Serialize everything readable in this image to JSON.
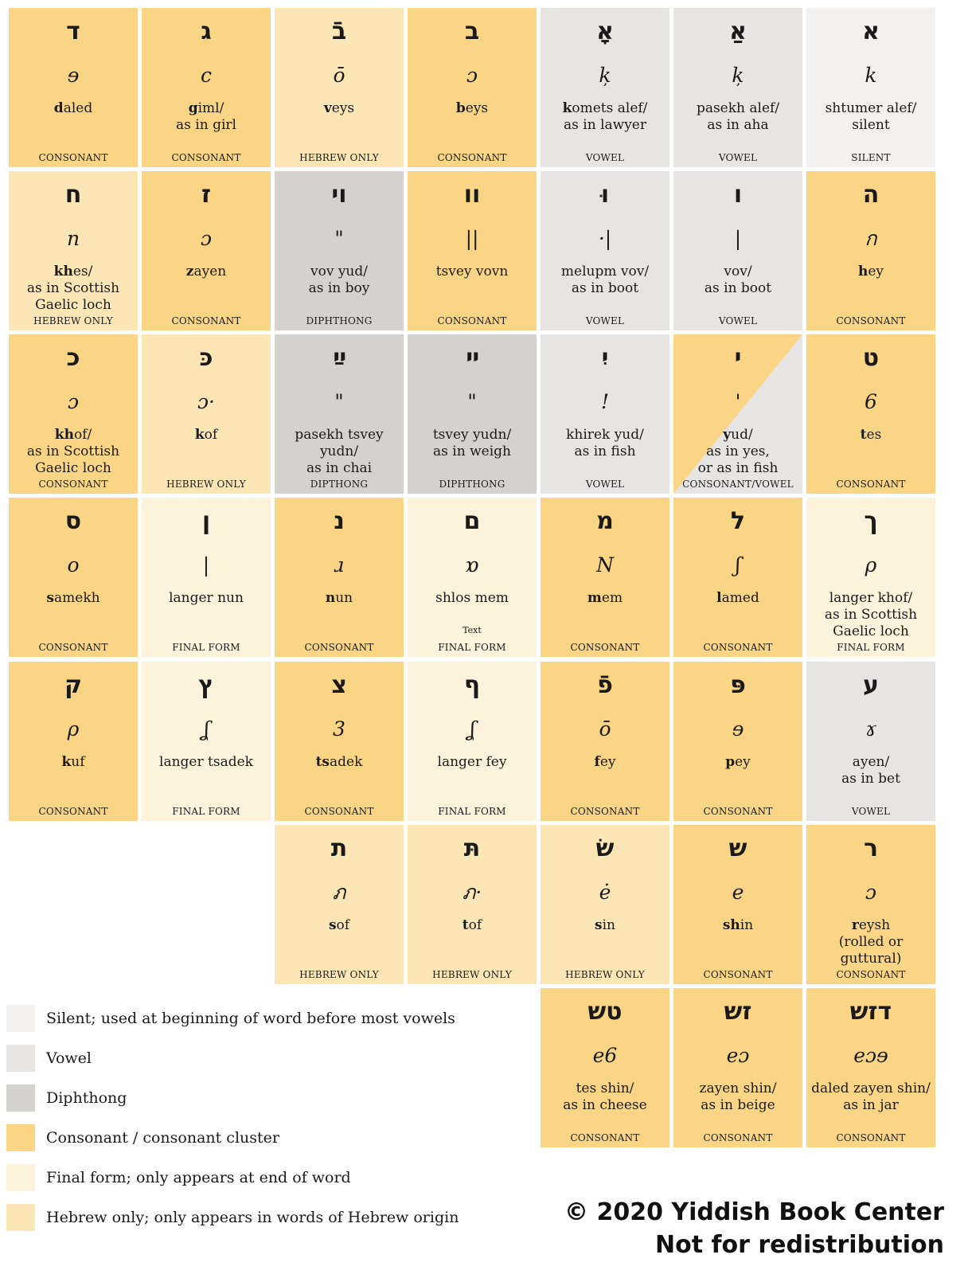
{
  "colors": {
    "silent": "#f2f1ef",
    "vowel": "#e6e5e3",
    "diphthong": "#d4d2ce",
    "consonant": "#f9d585",
    "final": "#fdf2dc",
    "hebrew": "#fce6b5"
  },
  "rows": [
    [
      {
        "heb": "ד",
        "script": "ɘ",
        "name": "daled",
        "bold": "d",
        "cat": "CONSONANT",
        "type": "consonant"
      },
      {
        "heb": "ג",
        "script": "c",
        "name": "giml/\nas in girl",
        "bold": "g",
        "cat": "CONSONANT",
        "type": "consonant"
      },
      {
        "heb": "בֿ",
        "script": "ō",
        "name": "veys",
        "bold": "v",
        "cat": "HEBREW ONLY",
        "type": "hebrew"
      },
      {
        "heb": "ב",
        "script": "ɔ",
        "name": "beys",
        "bold": "b",
        "cat": "CONSONANT",
        "type": "consonant"
      },
      {
        "heb": "אָ",
        "script": "ķ",
        "name": "komets alef/\nas in lawyer",
        "bold": "k",
        "cat": "VOWEL",
        "type": "vowel"
      },
      {
        "heb": "אַ",
        "script": "ķ",
        "name": "pasekh alef/\nas in aha",
        "bold": "a",
        "cat": "VOWEL",
        "type": "vowel"
      },
      {
        "heb": "א",
        "script": "k",
        "name": "shtumer alef/\nsilent",
        "bold": "",
        "cat": "SILENT",
        "type": "silent"
      }
    ],
    [
      {
        "heb": "ח",
        "script": "n",
        "name": "khes/\nas in Scottish\nGaelic loch",
        "bold": "kh",
        "cat": "HEBREW ONLY",
        "type": "hebrew"
      },
      {
        "heb": "ז",
        "script": "ɔ",
        "name": "zayen",
        "bold": "z",
        "cat": "CONSONANT",
        "type": "consonant"
      },
      {
        "heb": "וי",
        "script": "\"",
        "name": "vov yud/\nas in boy",
        "bold": "",
        "cat": "DIPHTHONG",
        "type": "diphthong"
      },
      {
        "heb": "וו",
        "script": "||",
        "name": "tsvey vovn",
        "bold": "v",
        "cat": "CONSONANT",
        "type": "consonant"
      },
      {
        "heb": "וּ",
        "script": "·|",
        "name": "melupm vov/\nas in boot",
        "bold": "",
        "cat": "VOWEL",
        "type": "vowel"
      },
      {
        "heb": "ו",
        "script": "|",
        "name": "vov/\nas in boot",
        "bold": "",
        "cat": "VOWEL",
        "type": "vowel"
      },
      {
        "heb": "ה",
        "script": "ก",
        "name": "hey",
        "bold": "h",
        "cat": "CONSONANT",
        "type": "consonant"
      }
    ],
    [
      {
        "heb": "כ",
        "script": "ɔ",
        "name": "khof/\nas in Scottish\nGaelic loch",
        "bold": "kh",
        "cat": "CONSONANT",
        "type": "consonant"
      },
      {
        "heb": "כּ",
        "script": "ɔ·",
        "name": "kof",
        "bold": "k",
        "cat": "HEBREW ONLY",
        "type": "hebrew"
      },
      {
        "heb": "ײַ",
        "script": "\"",
        "name": "pasekh tsvey yudn/\nas in chai",
        "bold": "",
        "cat": "DIPTHONG",
        "type": "diphthong"
      },
      {
        "heb": "ײ",
        "script": "\"",
        "name": "tsvey yudn/\nas in weigh",
        "bold": "",
        "cat": "DIPHTHONG",
        "type": "diphthong"
      },
      {
        "heb": "יִ",
        "script": "!",
        "name": "khirek yud/\nas in fish",
        "bold": "",
        "cat": "VOWEL",
        "type": "vowel"
      },
      {
        "heb": "י",
        "script": "'",
        "name": "yud/\nas in yes,\nor as in fish",
        "bold": "y",
        "cat": "CONSONANT/VOWEL",
        "type": "split"
      },
      {
        "heb": "ט",
        "script": "6",
        "name": "tes",
        "bold": "t",
        "cat": "CONSONANT",
        "type": "consonant"
      }
    ],
    [
      {
        "heb": "ס",
        "script": "o",
        "name": "samekh",
        "bold": "s",
        "cat": "CONSONANT",
        "type": "consonant"
      },
      {
        "heb": "ן",
        "script": "|",
        "name": "langer nun",
        "bold": "",
        "cat": "FINAL FORM",
        "type": "final"
      },
      {
        "heb": "נ",
        "script": "ɹ",
        "name": "nun",
        "bold": "n",
        "cat": "CONSONANT",
        "type": "consonant"
      },
      {
        "heb": "ם",
        "script": "ɒ",
        "name": "shlos mem",
        "bold": "",
        "cat": "FINAL FORM",
        "type": "final",
        "note": "Text"
      },
      {
        "heb": "מ",
        "script": "N",
        "name": "mem",
        "bold": "m",
        "cat": "CONSONANT",
        "type": "consonant"
      },
      {
        "heb": "ל",
        "script": "ʃ",
        "name": "lamed",
        "bold": "l",
        "cat": "CONSONANT",
        "type": "consonant"
      },
      {
        "heb": "ך",
        "script": "ρ",
        "name": "langer khof/\nas in Scottish\nGaelic loch",
        "bold": "",
        "cat": "FINAL FORM",
        "type": "final"
      }
    ],
    [
      {
        "heb": "ק",
        "script": "ρ",
        "name": "kuf",
        "bold": "k",
        "cat": "CONSONANT",
        "type": "consonant"
      },
      {
        "heb": "ץ",
        "script": "ʆ",
        "name": "langer tsadek",
        "bold": "",
        "cat": "FINAL FORM",
        "type": "final"
      },
      {
        "heb": "צ",
        "script": "3",
        "name": "tsadek",
        "bold": "ts",
        "cat": "CONSONANT",
        "type": "consonant"
      },
      {
        "heb": "ף",
        "script": "ʆ",
        "name": "langer fey",
        "bold": "",
        "cat": "FINAL FORM",
        "type": "final"
      },
      {
        "heb": "פֿ",
        "script": "ō",
        "name": "fey",
        "bold": "f",
        "cat": "CONSONANT",
        "type": "consonant"
      },
      {
        "heb": "פּ",
        "script": "ɘ",
        "name": "pey",
        "bold": "p",
        "cat": "CONSONANT",
        "type": "consonant"
      },
      {
        "heb": "ע",
        "script": "ɤ",
        "name": "ayen/\nas in bet",
        "bold": "",
        "cat": "VOWEL",
        "type": "vowel"
      }
    ],
    [
      null,
      null,
      {
        "heb": "ת",
        "script": "ภ",
        "name": "sof",
        "bold": "s",
        "cat": "HEBREW ONLY",
        "type": "hebrew"
      },
      {
        "heb": "תּ",
        "script": "ภ·",
        "name": "tof",
        "bold": "t",
        "cat": "HEBREW ONLY",
        "type": "hebrew"
      },
      {
        "heb": "שׂ",
        "script": "ė",
        "name": "sin",
        "bold": "s",
        "cat": "HEBREW ONLY",
        "type": "hebrew"
      },
      {
        "heb": "ש",
        "script": "e",
        "name": "shin",
        "bold": "sh",
        "cat": "CONSONANT",
        "type": "consonant"
      },
      {
        "heb": "ר",
        "script": "ɔ",
        "name": "reysh\n(rolled or guttural)",
        "bold": "r",
        "cat": "CONSONANT",
        "type": "consonant"
      }
    ],
    [
      null,
      null,
      null,
      null,
      {
        "heb": "טש",
        "script": "e6",
        "name": "tes shin/\nas in cheese",
        "bold": "",
        "cat": "CONSONANT",
        "type": "consonant"
      },
      {
        "heb": "זש",
        "script": "eɔ",
        "name": "zayen shin/\nas in beige",
        "bold": "",
        "cat": "CONSONANT",
        "type": "consonant"
      },
      {
        "heb": "דזש",
        "script": "eɔɘ",
        "name": "daled zayen shin/\nas in jar",
        "bold": "j",
        "cat": "CONSONANT",
        "type": "consonant"
      }
    ]
  ],
  "legend": [
    {
      "type": "silent",
      "text": "Silent; used at beginning of word before most vowels"
    },
    {
      "type": "vowel",
      "text": "Vowel"
    },
    {
      "type": "diphthong",
      "text": "Diphthong"
    },
    {
      "type": "consonant",
      "text": "Consonant / consonant cluster"
    },
    {
      "type": "final",
      "text": "Final form; only appears at end of word"
    },
    {
      "type": "hebrew",
      "text": "Hebrew only; only appears in words of Hebrew origin"
    }
  ],
  "copyright": {
    "line1": "© 2020 Yiddish Book Center",
    "line2": "Not for redistribution"
  }
}
